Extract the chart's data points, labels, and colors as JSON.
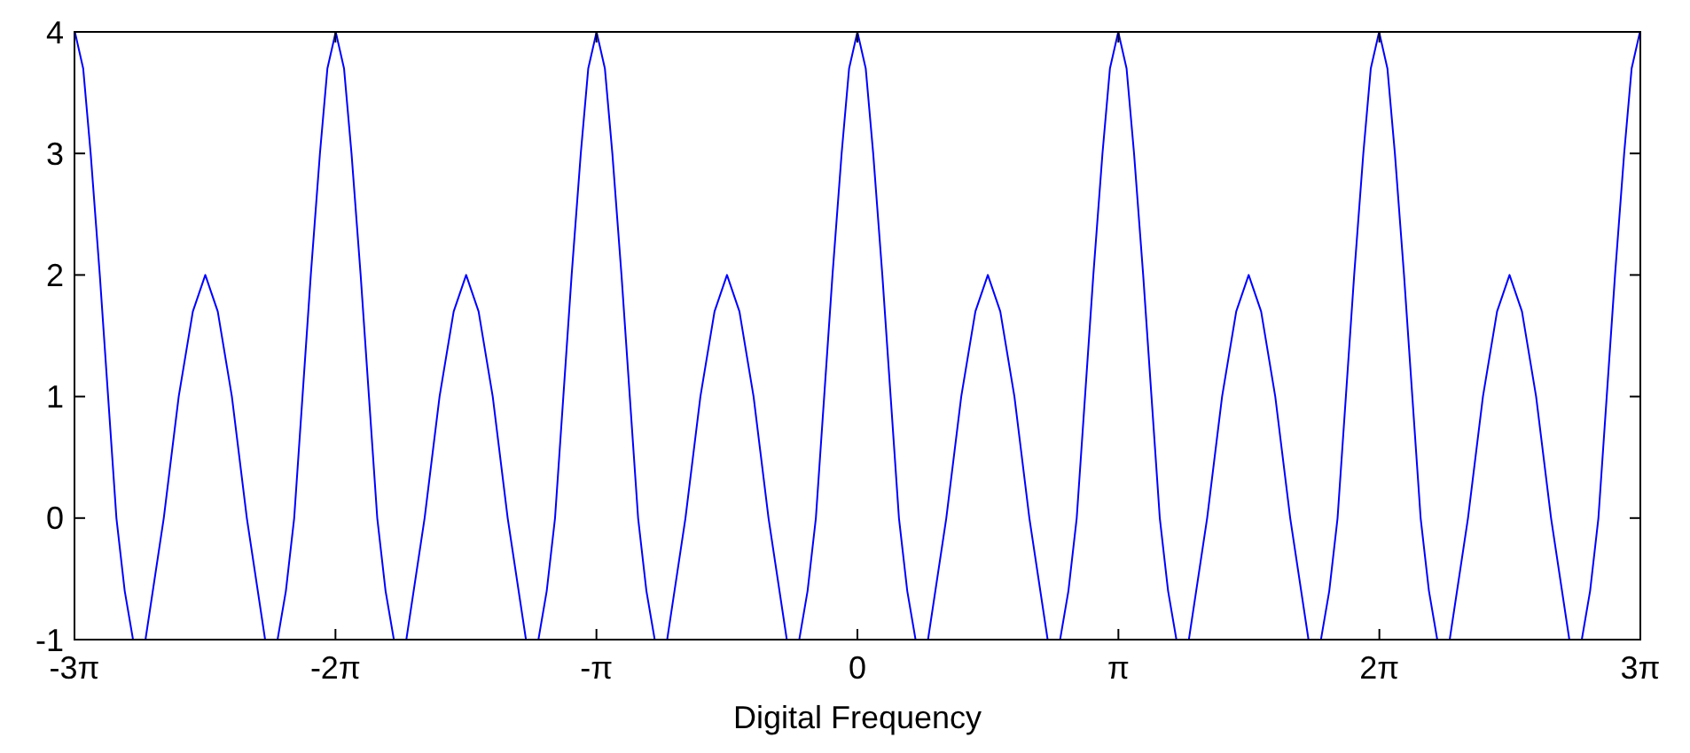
{
  "chart_data": {
    "type": "line",
    "xlabel": "Digital Frequency",
    "xlim": [
      -9.4248,
      9.4248
    ],
    "ylim": [
      -1,
      4
    ],
    "xticks": [
      {
        "value": -9.4248,
        "label": "-3π"
      },
      {
        "value": -6.2832,
        "label": "-2π"
      },
      {
        "value": -3.1416,
        "label": "-π"
      },
      0,
      {
        "value": 3.1416,
        "label": "π"
      },
      {
        "value": 6.2832,
        "label": "2π"
      },
      {
        "value": 9.4248,
        "label": "3π"
      }
    ],
    "yticks": [
      -1,
      0,
      1,
      2,
      3,
      4
    ],
    "grid": false,
    "marker": "none",
    "line_style": "solid",
    "series": [
      {
        "color": "#0000ff",
        "x": [
          -9.42,
          -9.32,
          -9.23,
          -9.12,
          -9.02,
          -8.92,
          -8.82,
          -8.72,
          -8.64,
          -8.57,
          -8.35,
          -8.17,
          -8.0,
          -7.85,
          -7.7,
          -7.53,
          -7.35,
          -7.13,
          -7.06,
          -6.98,
          -6.88,
          -6.78,
          -6.68,
          -6.58,
          -6.47,
          -6.38,
          -6.28,
          -6.18,
          -6.09,
          -5.98,
          -5.88,
          -5.78,
          -5.68,
          -5.58,
          -5.5,
          -5.43,
          -5.21,
          -5.03,
          -4.86,
          -4.71,
          -4.56,
          -4.39,
          -4.21,
          -3.99,
          -3.92,
          -3.84,
          -3.74,
          -3.64,
          -3.54,
          -3.44,
          -3.33,
          -3.24,
          -3.14,
          -3.04,
          -2.95,
          -2.84,
          -2.74,
          -2.64,
          -2.54,
          -2.44,
          -2.36,
          -2.29,
          -2.07,
          -1.89,
          -1.72,
          -1.57,
          -1.42,
          -1.25,
          -1.07,
          -0.85,
          -0.78,
          -0.7,
          -0.6,
          -0.5,
          -0.4,
          -0.3,
          -0.19,
          -0.1,
          0,
          0.1,
          0.19,
          0.3,
          0.4,
          0.5,
          0.6,
          0.7,
          0.78,
          0.85,
          1.07,
          1.25,
          1.42,
          1.57,
          1.72,
          1.89,
          2.07,
          2.29,
          2.36,
          2.44,
          2.54,
          2.64,
          2.74,
          2.84,
          2.95,
          3.04,
          3.14,
          3.24,
          3.33,
          3.44,
          3.54,
          3.64,
          3.74,
          3.84,
          3.92,
          3.99,
          4.21,
          4.39,
          4.56,
          4.71,
          4.86,
          5.03,
          5.21,
          5.43,
          5.5,
          5.58,
          5.68,
          5.78,
          5.88,
          5.98,
          6.09,
          6.18,
          6.28,
          6.38,
          6.47,
          6.58,
          6.68,
          6.78,
          6.88,
          6.98,
          7.06,
          7.13,
          7.35,
          7.53,
          7.7,
          7.85,
          8.0,
          8.17,
          8.35,
          8.57,
          8.64,
          8.72,
          8.82,
          8.92,
          9.02,
          9.12,
          9.23,
          9.32,
          9.42
        ],
        "values": [
          4,
          3.7,
          3,
          2,
          1,
          0,
          -0.6,
          -1,
          null,
          -1,
          0,
          1,
          1.7,
          2,
          1.7,
          1,
          0,
          -1,
          null,
          -1,
          -0.6,
          0,
          1,
          2,
          3,
          3.7,
          4,
          3.7,
          3,
          2,
          1,
          0,
          -0.6,
          -1,
          null,
          -1,
          0,
          1,
          1.7,
          2,
          1.7,
          1,
          0,
          -1,
          null,
          -1,
          -0.6,
          0,
          1,
          2,
          3,
          3.7,
          4,
          3.7,
          3,
          2,
          1,
          0,
          -0.6,
          -1,
          null,
          -1,
          0,
          1,
          1.7,
          2,
          1.7,
          1,
          0,
          -1,
          null,
          -1,
          -0.6,
          0,
          1,
          2,
          3,
          3.7,
          4,
          3.7,
          3,
          2,
          1,
          0,
          -0.6,
          -1,
          null,
          -1,
          0,
          1,
          1.7,
          2,
          1.7,
          1,
          0,
          -1,
          null,
          -1,
          -0.6,
          0,
          1,
          2,
          3,
          3.7,
          4,
          3.7,
          3,
          2,
          1,
          0,
          -0.6,
          -1,
          null,
          -1,
          0,
          1,
          1.7,
          2,
          1.7,
          1,
          0,
          -1,
          null,
          -1,
          -0.6,
          0,
          1,
          2,
          3,
          3.7,
          4,
          3.7,
          3,
          2,
          1,
          0,
          -0.6,
          -1,
          null,
          -1,
          0,
          1,
          1.7,
          2,
          1.7,
          1,
          0,
          -1,
          null,
          -1,
          -0.6,
          0,
          1,
          2,
          3,
          3.7,
          4
        ]
      }
    ]
  }
}
